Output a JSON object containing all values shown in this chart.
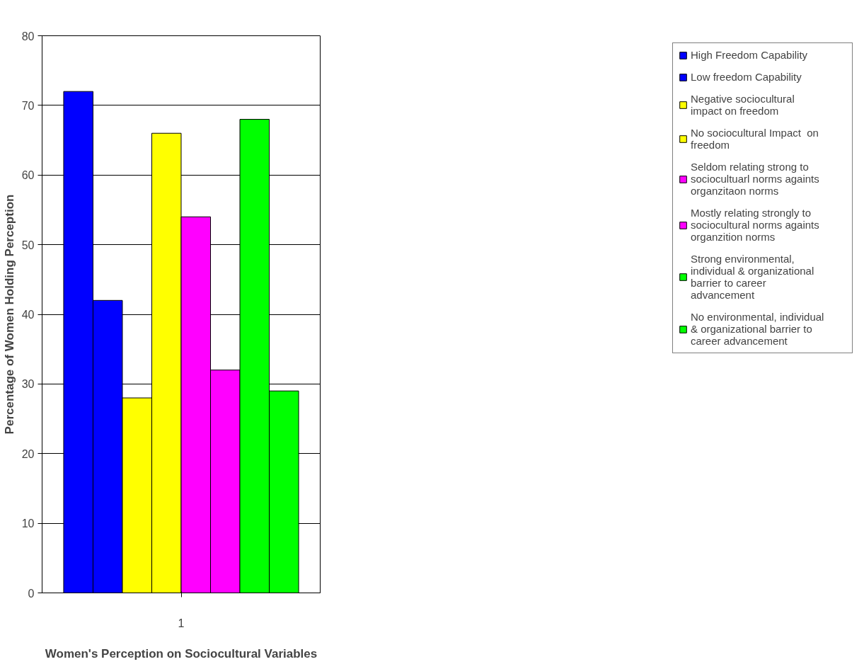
{
  "chart_data": {
    "type": "bar",
    "xlabel": "Women's Perception on Sociocultural Variables",
    "ylabel": "Percentage of Women Holding Perception",
    "categories": [
      "1"
    ],
    "series": [
      {
        "name": "High Freedom Capability",
        "color": "#0000ff",
        "values": [
          72
        ]
      },
      {
        "name": "Low freedom Capability",
        "color": "#0000ff",
        "values": [
          42
        ]
      },
      {
        "name": "Negative sociocultural impact on freedom",
        "color": "#ffff00",
        "values": [
          28
        ]
      },
      {
        "name": "No sociocultural Impact  on freedom",
        "color": "#ffff00",
        "values": [
          66
        ]
      },
      {
        "name": "Seldom relating strong to sociocultuarl norms againts organzitaon norms",
        "color": "#ff00ff",
        "values": [
          54
        ]
      },
      {
        "name": "Mostly relating strongly to sociocultural norms againts organzition norms",
        "color": "#ff00ff",
        "values": [
          32
        ]
      },
      {
        "name": "Strong environmental, individual & organizational barrier to career advancement",
        "color": "#00ff00",
        "values": [
          68
        ]
      },
      {
        "name": "No environmental, individual & organizational barrier to career advancement",
        "color": "#00ff00",
        "values": [
          29
        ]
      }
    ],
    "ylim": [
      0,
      80
    ],
    "yticks": [
      0,
      10,
      20,
      30,
      40,
      50,
      60,
      70,
      80
    ],
    "grid": "y",
    "legend": "right"
  }
}
